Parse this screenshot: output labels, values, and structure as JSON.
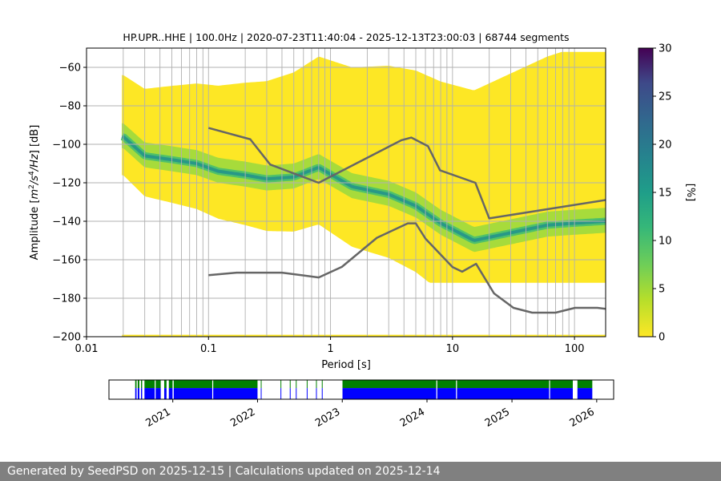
{
  "chart_data": [
    {
      "type": "heatmap",
      "title": "HP.UPR..HHE | 100.0Hz | 2020-07-23T11:40:04 - 2025-12-13T23:00:03 | 68744 segments",
      "xlabel": "Period [s]",
      "ylabel_main": "Amplitude [",
      "ylabel_math": "m",
      "ylabel_rest": "/s",
      "ylabel_tail": "/Hz",
      "ylabel_end": "] [dB]",
      "xscale": "log",
      "xlim": [
        0.01,
        180
      ],
      "ylim": [
        -200,
        -50
      ],
      "x_ticks": [
        {
          "value": 0.01,
          "label": "0.01"
        },
        {
          "value": 0.1,
          "label": "0.1"
        },
        {
          "value": 1,
          "label": "1"
        },
        {
          "value": 10,
          "label": "10"
        },
        {
          "value": 100,
          "label": "100"
        }
      ],
      "y_ticks": [
        {
          "value": -60,
          "label": "−60"
        },
        {
          "value": -80,
          "label": "−80"
        },
        {
          "value": -100,
          "label": "−100"
        },
        {
          "value": -120,
          "label": "−120"
        },
        {
          "value": -140,
          "label": "−140"
        },
        {
          "value": -160,
          "label": "−160"
        },
        {
          "value": -180,
          "label": "−180"
        },
        {
          "value": -200,
          "label": "−200"
        }
      ],
      "grid": true,
      "nhnm": {
        "x": [
          0.1,
          0.22,
          0.32,
          0.8,
          3.8,
          4.6,
          6.3,
          7.9,
          15.4,
          20,
          354.8
        ],
        "y": [
          -91.5,
          -97.4,
          -110.5,
          -120,
          -97.9,
          -96.5,
          -101,
          -113.5,
          -120,
          -138.5,
          -126
        ]
      },
      "nlnm": {
        "x": [
          0.1,
          0.17,
          0.4,
          0.8,
          1.24,
          2.4,
          4.3,
          5,
          6,
          10,
          12,
          15.6,
          21.9,
          31.6,
          45,
          70,
          101,
          154,
          328
        ],
        "y": [
          -168,
          -166.7,
          -166.7,
          -169.2,
          -163.7,
          -148.6,
          -141.1,
          -141.1,
          -149,
          -163.8,
          -166.2,
          -162.1,
          -177.5,
          -185,
          -187.5,
          -187.5,
          -185,
          -185,
          -187.5
        ]
      },
      "pdf_mode": {
        "x": [
          0.02,
          0.03,
          0.05,
          0.08,
          0.12,
          0.2,
          0.3,
          0.5,
          0.8,
          1.5,
          3,
          5,
          8,
          15,
          30,
          60,
          100,
          180
        ],
        "y": [
          -96,
          -106,
          -108,
          -110,
          -114,
          -116,
          -118,
          -117,
          -112,
          -122,
          -126,
          -132,
          -141,
          -150,
          -146,
          -142,
          -141,
          -140
        ]
      },
      "colorbar": {
        "label": "[%]",
        "range": [
          0,
          30
        ],
        "ticks": [
          {
            "value": 0,
            "label": "0"
          },
          {
            "value": 5,
            "label": "5"
          },
          {
            "value": 10,
            "label": "10"
          },
          {
            "value": 15,
            "label": "15"
          },
          {
            "value": 20,
            "label": "20"
          },
          {
            "value": 25,
            "label": "25"
          },
          {
            "value": 30,
            "label": "30"
          }
        ]
      }
    },
    {
      "type": "bar",
      "title": "",
      "xlim": [
        "2020-04-01",
        "2026-03-15"
      ],
      "x_ticks": [
        {
          "value": "2021-01-01",
          "label": "2021"
        },
        {
          "value": "2022-01-01",
          "label": "2022"
        },
        {
          "value": "2023-01-01",
          "label": "2023"
        },
        {
          "value": "2024-01-01",
          "label": "2024"
        },
        {
          "value": "2025-01-01",
          "label": "2025"
        },
        {
          "value": "2026-01-01",
          "label": "2026"
        }
      ],
      "coverage_colors": {
        "processed": "#008000",
        "available": "#0000ff"
      },
      "coverage_intervals": [
        [
          "2020-07-23",
          "2020-07-29"
        ],
        [
          "2020-08-03",
          "2020-08-10"
        ],
        [
          "2020-08-17",
          "2020-08-22"
        ],
        [
          "2020-09-01",
          "2020-11-10"
        ],
        [
          "2020-11-25",
          "2020-12-05"
        ],
        [
          "2020-12-15",
          "2020-12-31"
        ],
        [
          "2021-01-05",
          "2022-01-01"
        ],
        [
          "2022-01-15",
          "2022-01-16"
        ],
        [
          "2022-04-10",
          "2022-04-12"
        ],
        [
          "2022-05-20",
          "2022-05-22"
        ],
        [
          "2022-06-15",
          "2022-06-17"
        ],
        [
          "2022-08-01",
          "2022-08-03"
        ],
        [
          "2022-09-10",
          "2022-09-12"
        ],
        [
          "2022-10-05",
          "2022-10-06"
        ],
        [
          "2023-01-02",
          "2025-09-20"
        ],
        [
          "2025-10-10",
          "2025-12-13"
        ]
      ],
      "gap_marks": [
        "2020-10-15",
        "2021-06-20",
        "2024-02-10",
        "2024-05-05",
        "2025-06-10"
      ]
    }
  ],
  "footer": {
    "text": "Generated by SeedPSD on 2025-12-15 | Calculations updated on 2025-12-14"
  },
  "colors": {
    "pdf_high": "#440154",
    "pdf_mid": "#21918c",
    "pdf_low": "#fde725",
    "noise_models": "#666666",
    "grid": "#b0b0b0"
  }
}
